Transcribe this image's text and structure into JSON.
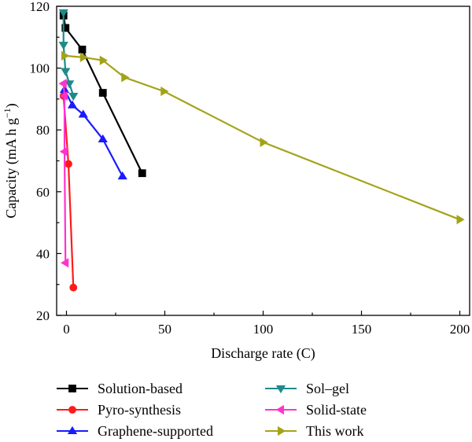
{
  "chart_data": {
    "type": "line",
    "xlabel": "Discharge rate (C)",
    "ylabel_main": "Capacity (mA h g",
    "ylabel_sup": "−1",
    "ylabel_close": ")",
    "xlim": [
      -5,
      205
    ],
    "ylim": [
      20,
      120
    ],
    "xticks": [
      0,
      50,
      100,
      150,
      200
    ],
    "yticks": [
      20,
      40,
      60,
      80,
      100,
      120
    ],
    "series": [
      {
        "name": "Solution-based",
        "color": "#000000",
        "marker": "square",
        "x": [
          -1.5,
          -0.5,
          8,
          18.5,
          38.5
        ],
        "y": [
          117,
          113,
          106,
          92,
          66
        ]
      },
      {
        "name": "Pyro-synthesis",
        "color": "#ff1a1a",
        "marker": "circle",
        "x": [
          -1.5,
          1,
          3.5
        ],
        "y": [
          91,
          69,
          29
        ]
      },
      {
        "name": "Graphene-supported",
        "color": "#1a1aff",
        "marker": "triangle-up",
        "x": [
          -1,
          3,
          8.5,
          18.5,
          28.5
        ],
        "y": [
          93,
          88,
          85,
          77,
          65
        ]
      },
      {
        "name": "Sol–gel",
        "color": "#1f8a8a",
        "marker": "triangle-down",
        "x": [
          -1.5,
          -1.5,
          -0.5,
          1.5,
          3.5
        ],
        "y": [
          118,
          107.5,
          99,
          95,
          91
        ]
      },
      {
        "name": "Solid-state",
        "color": "#ff33cc",
        "marker": "triangle-left",
        "x": [
          -1.5,
          -1,
          -1,
          -0.5
        ],
        "y": [
          95,
          91,
          73,
          37
        ]
      },
      {
        "name": "This work",
        "color": "#a3a31a",
        "marker": "triangle-right",
        "x": [
          -1,
          8.5,
          18.5,
          29.5,
          49.5,
          100,
          200
        ],
        "y": [
          104,
          103.5,
          102.5,
          97,
          92.5,
          76,
          51
        ]
      }
    ],
    "legend_placement": "bottom, two columns"
  }
}
